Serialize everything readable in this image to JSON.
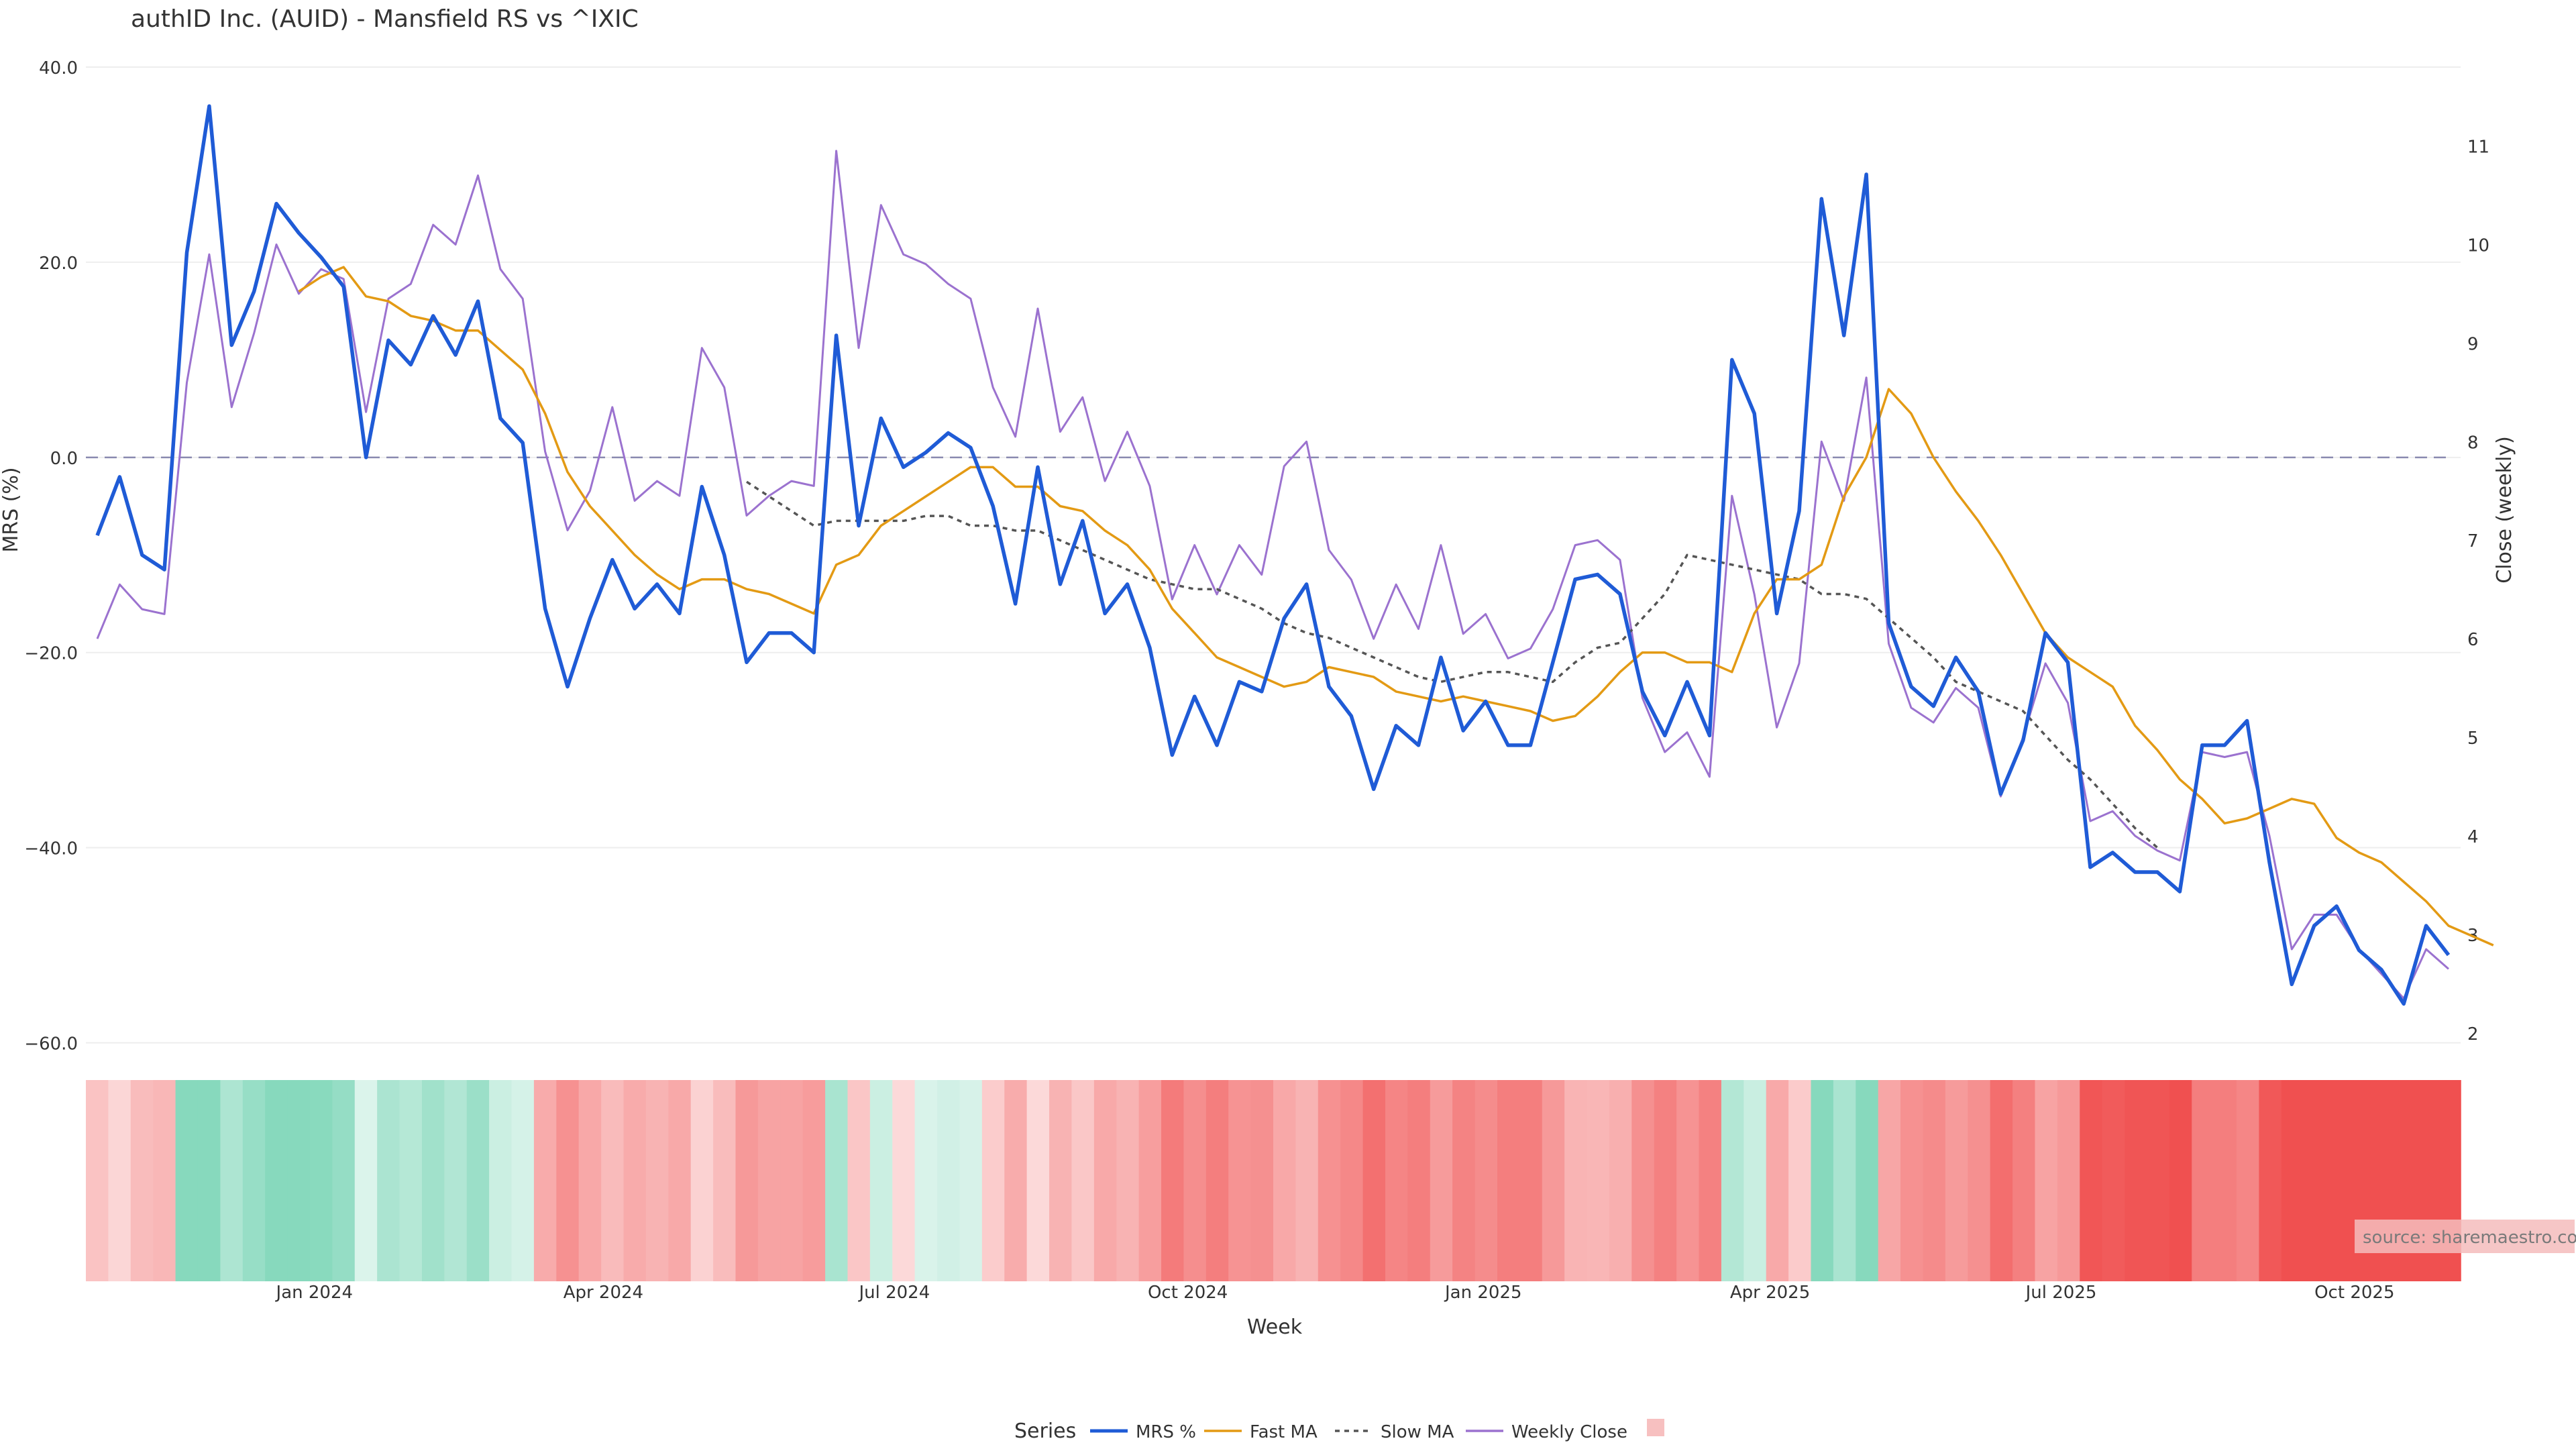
{
  "chart_data": {
    "type": "line",
    "title": "authID Inc. (AUID) - Mansfield RS vs ^IXIC",
    "xlabel": "Week",
    "ylabel_left": "MRS (%)",
    "ylabel_right": "Close (weekly)",
    "y_left_range": [
      -70,
      40
    ],
    "y_right_range": [
      0.91,
      11.8
    ],
    "y_left_ticks": [
      40,
      20,
      0,
      -20,
      -40,
      -60
    ],
    "y_left_tick_labels": [
      "40.0",
      "20.0",
      "0.0",
      "−20.0",
      "−40.0",
      "−60.0"
    ],
    "y_right_ticks": [
      2,
      3,
      4,
      5,
      6,
      7,
      8,
      9,
      10,
      11
    ],
    "y_right_tick_labels": [
      "2",
      "3",
      "4",
      "5",
      "6",
      "7",
      "8",
      "9",
      "10",
      "11"
    ],
    "x_ticks": [
      {
        "label": "Jan 2024",
        "week": 9.7
      },
      {
        "label": "Apr 2024",
        "week": 22.6
      },
      {
        "label": "Jul 2024",
        "week": 35.6
      },
      {
        "label": "Oct 2024",
        "week": 48.7
      },
      {
        "label": "Jan 2025",
        "week": 61.9
      },
      {
        "label": "Apr 2025",
        "week": 74.7
      },
      {
        "label": "Jul 2025",
        "week": 87.7
      },
      {
        "label": "Oct 2025",
        "week": 100.8
      }
    ],
    "week_count": 106,
    "series": [
      {
        "name": "MRS %",
        "axis": "left",
        "color": "#1f5bd6",
        "values": [
          -8,
          -2,
          -10,
          -11.5,
          21,
          36,
          11.5,
          17,
          26,
          23,
          20.5,
          17.5,
          0,
          12,
          9.5,
          14.5,
          10.5,
          16,
          4,
          1.5,
          -15.5,
          -23.5,
          -16.5,
          -10.5,
          -15.5,
          -13,
          -16,
          -3,
          -10,
          -21,
          -18,
          -18,
          -20,
          12.5,
          -7,
          4,
          -1,
          0.5,
          2.5,
          1,
          -5,
          -15,
          -1,
          -13,
          -6.5,
          -16,
          -13,
          -19.5,
          -30.5,
          -24.5,
          -29.5,
          -23,
          -24,
          -16.5,
          -13,
          -23.5,
          -26.5,
          -34,
          -27.5,
          -29.5,
          -20.5,
          -28,
          -25,
          -29.5,
          -29.5,
          -21,
          -12.5,
          -12,
          -14,
          -24,
          -28.5,
          -23,
          -28.5,
          10,
          4.5,
          -16,
          -5.5,
          26.5,
          12.5,
          29,
          -17,
          -23.5,
          -25.5,
          -20.5,
          -24,
          -34.5,
          -29,
          -18,
          -21,
          -42,
          -40.5,
          -42.5,
          -42.5,
          -44.5,
          -29.5,
          -29.5,
          -27,
          -41.5,
          -54,
          -48,
          -46,
          -50.5,
          -52.5,
          -56,
          -48,
          -51
        ]
      },
      {
        "name": "Fast MA",
        "axis": "left",
        "color": "#e39a14",
        "start": 9,
        "values": [
          17,
          18.5,
          19.5,
          16.5,
          16,
          14.5,
          14,
          13,
          13,
          11,
          9,
          4.5,
          -1.5,
          -5,
          -7.5,
          -10,
          -12,
          -13.5,
          -12.5,
          -12.5,
          -13.5,
          -14,
          -15,
          -16,
          -11,
          -10,
          -7,
          -5.5,
          -4,
          -2.5,
          -1,
          -1,
          -3,
          -3,
          -5,
          -5.5,
          -7.5,
          -9,
          -11.5,
          -15.5,
          -18,
          -20.5,
          -21.5,
          -22.5,
          -23.5,
          -23,
          -21.5,
          -22,
          -22.5,
          -24,
          -24.5,
          -25,
          -24.5,
          -25,
          -25.5,
          -26,
          -27,
          -26.5,
          -24.5,
          -22,
          -20,
          -20,
          -21,
          -21,
          -22,
          -16,
          -12.5,
          -12.5,
          -11,
          -4,
          0,
          7,
          4.5,
          0,
          -3.5,
          -6.5,
          -10,
          -14,
          -18,
          -20.5,
          -22,
          -23.5,
          -27.5,
          -30,
          -33,
          -35,
          -37.5,
          -37,
          -36,
          -35,
          -35.5,
          -39,
          -40.5,
          -41.5,
          -43.5,
          -45.5,
          -48,
          -49,
          -50
        ]
      },
      {
        "name": "Slow MA",
        "axis": "left",
        "color": "#555555",
        "dash": true,
        "start": 29,
        "values": [
          -2.5,
          -4,
          -5.5,
          -7,
          -6.5,
          -6.5,
          -6.5,
          -6.5,
          -6,
          -6,
          -7,
          -7,
          -7.5,
          -7.5,
          -8.5,
          -9.5,
          -10.5,
          -11.5,
          -12.5,
          -13,
          -13.5,
          -13.5,
          -14.5,
          -15.5,
          -17,
          -18,
          -18.5,
          -19.5,
          -20.5,
          -21.5,
          -22.5,
          -23,
          -22.5,
          -22,
          -22,
          -22.5,
          -23,
          -21,
          -19.5,
          -19,
          -16.5,
          -14,
          -10,
          -10.5,
          -11,
          -11.5,
          -12,
          -12.5,
          -14,
          -14,
          -14.5,
          -16.5,
          -18.5,
          -20.5,
          -23,
          -24,
          -25,
          -26,
          -28.5,
          -31,
          -33,
          -35.5,
          -38,
          -40
        ]
      },
      {
        "name": "Weekly Close",
        "axis": "right",
        "color": "#9b72cf",
        "values": [
          6,
          6.55,
          6.3,
          6.25,
          8.6,
          9.9,
          8.35,
          9.1,
          10,
          9.5,
          9.75,
          9.65,
          8.3,
          9.45,
          9.6,
          10.2,
          10,
          10.7,
          9.75,
          9.45,
          7.9,
          7.1,
          7.5,
          8.35,
          7.4,
          7.6,
          7.45,
          8.95,
          8.55,
          7.25,
          7.45,
          7.6,
          7.55,
          10.95,
          8.95,
          10.4,
          9.9,
          9.8,
          9.6,
          9.45,
          8.55,
          8.05,
          9.35,
          8.1,
          8.45,
          7.6,
          8.1,
          7.55,
          6.4,
          6.95,
          6.45,
          6.95,
          6.65,
          7.75,
          8,
          6.9,
          6.6,
          6,
          6.55,
          6.1,
          6.95,
          6.05,
          6.25,
          5.8,
          5.9,
          6.3,
          6.95,
          7,
          6.8,
          5.4,
          4.85,
          5.05,
          4.6,
          7.45,
          6.45,
          5.1,
          5.75,
          8,
          7.4,
          8.65,
          5.95,
          5.3,
          5.15,
          5.5,
          5.3,
          4.4,
          5,
          5.75,
          5.35,
          4.15,
          4.25,
          4,
          3.85,
          3.75,
          4.85,
          4.8,
          4.85,
          4,
          2.85,
          3.2,
          3.2,
          2.85,
          2.6,
          2.35,
          2.85,
          2.65
        ]
      }
    ],
    "heatmap_strip": {
      "name": "MRS heat strip",
      "description_values": "per-week MRS sign/magnitude shading (green positive, red negative)"
    },
    "legend": {
      "title": "Series",
      "position": "bottom-center",
      "entries": [
        "MRS %",
        "Fast MA",
        "Slow MA",
        "Weekly Close",
        ""
      ]
    },
    "source_text": "source: sharemaestro.com",
    "colors": {
      "grid": "#eeeeee",
      "zero_line": "#8a8ab0",
      "positive": "#87d9bd",
      "negative": "#f05050",
      "legend_square": "#f7c0c0"
    }
  }
}
